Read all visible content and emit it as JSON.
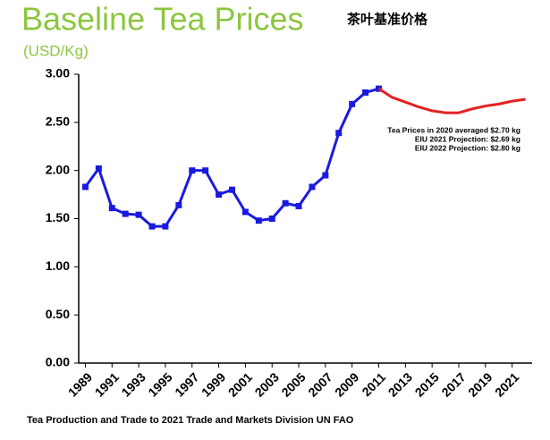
{
  "chart_data": {
    "type": "line",
    "title": "Baseline Tea Prices",
    "title_cn": "茶叶基准价格",
    "subtitle": "(USD/Kg)",
    "source": "Tea Production and Trade to 2021 Trade and Markets Division UN FAO",
    "annotations": [
      "Tea Prices in 2020 averaged $2.70 kg",
      "EIU 2021 Projection: $2.69 kg",
      "EIU 2022 Projection: $2.80 kg"
    ],
    "x": [
      1989,
      1990,
      1991,
      1992,
      1993,
      1994,
      1995,
      1996,
      1997,
      1998,
      1999,
      2000,
      2001,
      2002,
      2003,
      2004,
      2005,
      2006,
      2007,
      2008,
      2009,
      2010,
      2011,
      2012,
      2013,
      2014,
      2015,
      2016,
      2017,
      2018,
      2019,
      2020,
      2021,
      2022
    ],
    "series": [
      {
        "color": "#1a1adf",
        "values": [
          1.83,
          2.02,
          1.61,
          1.55,
          1.54,
          1.42,
          1.42,
          1.64,
          2.0,
          2.0,
          1.75,
          1.8,
          1.57,
          1.48,
          1.5,
          1.66,
          1.63,
          1.83,
          1.95,
          2.39,
          2.69,
          2.81,
          2.85,
          null,
          null,
          null,
          null,
          null,
          null,
          null,
          null,
          null,
          null,
          null
        ]
      },
      {
        "color": "#e32222",
        "values": [
          null,
          null,
          null,
          null,
          null,
          null,
          null,
          null,
          null,
          null,
          null,
          null,
          null,
          null,
          null,
          null,
          null,
          null,
          null,
          null,
          null,
          null,
          2.85,
          2.76,
          2.71,
          2.66,
          2.62,
          2.6,
          2.6,
          2.64,
          2.67,
          2.69,
          2.72,
          2.74
        ]
      }
    ],
    "xlim": [
      1988.5,
      2022.5
    ],
    "xticks": [
      1989,
      1991,
      1993,
      1995,
      1997,
      1999,
      2001,
      2003,
      2005,
      2007,
      2009,
      2011,
      2013,
      2015,
      2017,
      2019,
      2021
    ],
    "ylim": [
      0,
      3
    ],
    "yticks": [
      {
        "value": 0,
        "label": "0.00"
      },
      {
        "value": 0.5,
        "label": "0.50"
      },
      {
        "value": 1,
        "label": "1.00"
      },
      {
        "value": 1.5,
        "label": "1.50"
      },
      {
        "value": 2,
        "label": "2.00"
      },
      {
        "value": 2.5,
        "label": "2.50"
      },
      {
        "value": 3,
        "label": "3.00"
      }
    ]
  }
}
